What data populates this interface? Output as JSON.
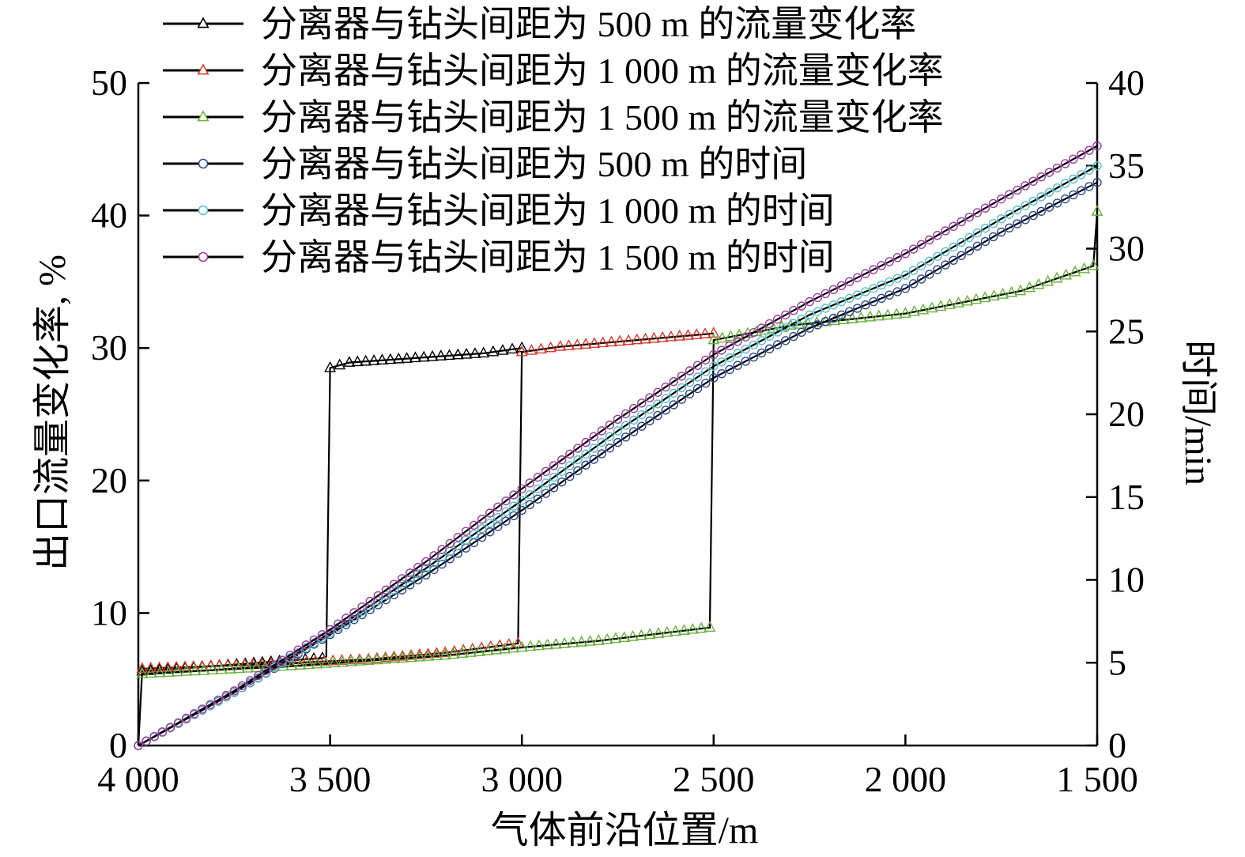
{
  "chart_data": {
    "type": "line",
    "title": "",
    "xlabel": "气体前沿位置/m",
    "ylabel": "出口流量变化率, %",
    "y2label": "时间/min",
    "xlim": [
      4000,
      1500
    ],
    "xreversed": true,
    "ylim": [
      0,
      50
    ],
    "y2lim": [
      0,
      40
    ],
    "xticks": [
      4000,
      3500,
      3000,
      2500,
      2000,
      1500
    ],
    "xtick_labels": [
      "4 000",
      "3 500",
      "3 000",
      "2 500",
      "2 000",
      "1 500"
    ],
    "yticks": [
      0,
      10,
      20,
      30,
      40,
      50
    ],
    "ytick_labels": [
      "0",
      "10",
      "20",
      "30",
      "40",
      "50"
    ],
    "y2ticks": [
      0,
      5,
      10,
      15,
      20,
      25,
      30,
      35,
      40
    ],
    "y2tick_labels": [
      "0",
      "5",
      "10",
      "15",
      "20",
      "25",
      "30",
      "35",
      "40"
    ],
    "grid": false,
    "legend_position": "top-left",
    "line_color": "#000000",
    "series": [
      {
        "name": "分离器与钻头间距为 500 m 的流量变化率",
        "marker": "triangle",
        "axis": "left",
        "color": "#000000",
        "x": [
          4000,
          3990,
          3520,
          3510,
          3500,
          3450,
          3300,
          3100,
          3000
        ],
        "y": [
          0,
          5.6,
          6.6,
          6.7,
          28.5,
          28.9,
          29.2,
          29.6,
          30.0
        ]
      },
      {
        "name": "分离器与钻头间距为 1 000 m 的流量变化率",
        "marker": "triangle",
        "axis": "left",
        "color": "#d43c2c",
        "x": [
          3990,
          3700,
          3400,
          3200,
          3010,
          3000,
          2900,
          2700,
          2500
        ],
        "y": [
          5.8,
          6.1,
          6.5,
          7.0,
          7.7,
          29.7,
          30.1,
          30.6,
          31.1
        ]
      },
      {
        "name": "分离器与钻头间距为 1 500 m 的流量变化率",
        "marker": "triangle",
        "axis": "left",
        "color": "#6ab23e",
        "x": [
          3990,
          3600,
          3200,
          3000,
          2800,
          2510,
          2500,
          2300,
          2000,
          1700,
          1510,
          1500
        ],
        "y": [
          5.4,
          6.0,
          6.8,
          7.4,
          7.9,
          8.9,
          30.6,
          31.7,
          32.6,
          34.3,
          36.2,
          40.3
        ]
      },
      {
        "name": "分离器与钻头间距为 500 m 的时间",
        "marker": "circle",
        "axis": "right",
        "color": "#2f4a8c",
        "x": [
          4000,
          3750,
          3500,
          3250,
          3000,
          2750,
          2500,
          2250,
          2000,
          1750,
          1500
        ],
        "y": [
          0,
          3.2,
          6.7,
          10.3,
          14.2,
          18.3,
          22.2,
          25.2,
          27.6,
          31.0,
          34.0
        ]
      },
      {
        "name": "分离器与钻头间距为 1 000 m 的时间",
        "marker": "circle",
        "axis": "right",
        "color": "#5bbec6",
        "x": [
          4000,
          3750,
          3500,
          3250,
          3000,
          2750,
          2500,
          2250,
          2000,
          1750,
          1500
        ],
        "y": [
          0,
          3.2,
          6.8,
          10.7,
          14.8,
          19.0,
          22.9,
          26.0,
          28.4,
          31.8,
          35.0
        ]
      },
      {
        "name": "分离器与钻头间距为 1 500 m 的时间",
        "marker": "circle",
        "axis": "right",
        "color": "#9b3f9c",
        "x": [
          4000,
          3750,
          3500,
          3250,
          3000,
          2750,
          2500,
          2250,
          2000,
          1750,
          1500
        ],
        "y": [
          0,
          3.3,
          7.0,
          11.1,
          15.5,
          19.7,
          23.6,
          26.8,
          29.7,
          33.0,
          36.2
        ]
      }
    ]
  }
}
